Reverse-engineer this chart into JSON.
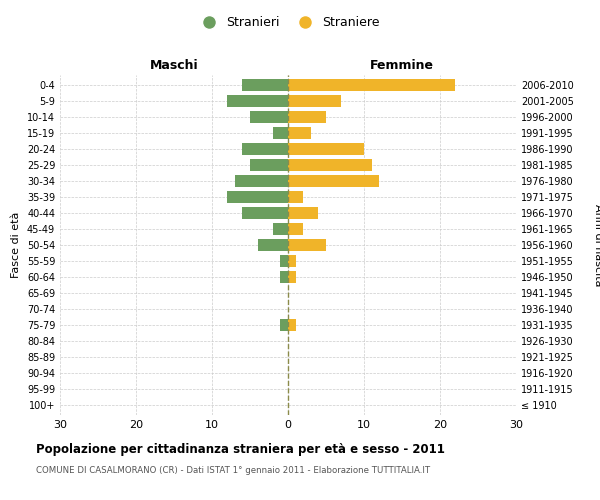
{
  "age_groups": [
    "100+",
    "95-99",
    "90-94",
    "85-89",
    "80-84",
    "75-79",
    "70-74",
    "65-69",
    "60-64",
    "55-59",
    "50-54",
    "45-49",
    "40-44",
    "35-39",
    "30-34",
    "25-29",
    "20-24",
    "15-19",
    "10-14",
    "5-9",
    "0-4"
  ],
  "birth_years": [
    "≤ 1910",
    "1911-1915",
    "1916-1920",
    "1921-1925",
    "1926-1930",
    "1931-1935",
    "1936-1940",
    "1941-1945",
    "1946-1950",
    "1951-1955",
    "1956-1960",
    "1961-1965",
    "1966-1970",
    "1971-1975",
    "1976-1980",
    "1981-1985",
    "1986-1990",
    "1991-1995",
    "1996-2000",
    "2001-2005",
    "2006-2010"
  ],
  "maschi": [
    0,
    0,
    0,
    0,
    0,
    1,
    0,
    0,
    1,
    1,
    4,
    2,
    6,
    8,
    7,
    5,
    6,
    2,
    5,
    8,
    6
  ],
  "femmine": [
    0,
    0,
    0,
    0,
    0,
    1,
    0,
    0,
    1,
    1,
    5,
    2,
    4,
    2,
    12,
    11,
    10,
    3,
    5,
    7,
    22
  ],
  "maschi_color": "#6b9e5e",
  "femmine_color": "#f0b429",
  "background_color": "#ffffff",
  "grid_color": "#cccccc",
  "center_line_color": "#8b8b4a",
  "title": "Popolazione per cittadinanza straniera per età e sesso - 2011",
  "subtitle": "COMUNE DI CASALMORANO (CR) - Dati ISTAT 1° gennaio 2011 - Elaborazione TUTTITALIA.IT",
  "ylabel_left": "Fasce di età",
  "ylabel_right": "Anni di nascita",
  "xlabel_left": "Maschi",
  "xlabel_right": "Femmine",
  "legend_maschi": "Stranieri",
  "legend_femmine": "Straniere",
  "xlim": 30,
  "bar_height": 0.75
}
